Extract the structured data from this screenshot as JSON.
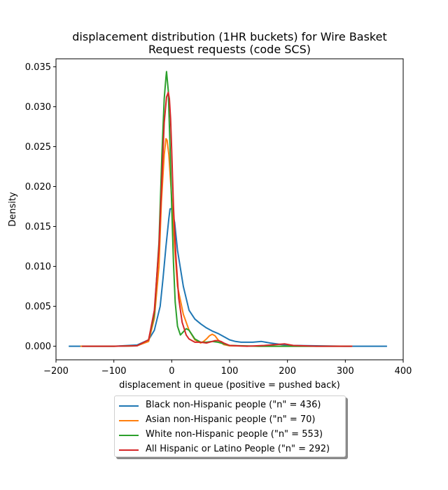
{
  "chart_data": {
    "type": "line",
    "title_line1": "displacement distribution (1HR buckets) for Wire Basket",
    "title_line2": "Request requests (code SCS)",
    "xlabel": "displacement in queue (positive = pushed back)",
    "ylabel": "Density",
    "xlim": [
      -200,
      400
    ],
    "ylim": [
      -0.0017,
      0.036
    ],
    "xticks": [
      -200,
      -100,
      0,
      100,
      200,
      300,
      400
    ],
    "yticks": [
      0.0,
      0.005,
      0.01,
      0.015,
      0.02,
      0.025,
      0.03,
      0.035
    ],
    "xtick_labels": [
      "−200",
      "−100",
      "0",
      "100",
      "200",
      "300",
      "400"
    ],
    "ytick_labels": [
      "0.000",
      "0.005",
      "0.010",
      "0.015",
      "0.020",
      "0.025",
      "0.030",
      "0.035"
    ],
    "legend_position": "bottom-center",
    "series": [
      {
        "name": "Black non-Hispanic people (\"n\" = 436)",
        "color": "#1f77b4",
        "x": [
          -178,
          -100,
          -60,
          -40,
          -30,
          -20,
          -15,
          -10,
          -5,
          -3,
          0,
          5,
          10,
          20,
          30,
          40,
          50,
          60,
          70,
          80,
          90,
          100,
          110,
          120,
          130,
          140,
          155,
          170,
          190,
          210,
          250,
          300,
          372
        ],
        "y": [
          0.0,
          0.0,
          0.00015,
          0.0008,
          0.002,
          0.005,
          0.0085,
          0.0125,
          0.016,
          0.0172,
          0.0172,
          0.0155,
          0.012,
          0.0075,
          0.0045,
          0.0034,
          0.0028,
          0.0023,
          0.0019,
          0.0016,
          0.0012,
          0.0008,
          0.0006,
          0.0005,
          0.0005,
          0.0005,
          0.0006,
          0.0004,
          0.0002,
          0.0001,
          5e-05,
          0.0,
          0.0
        ]
      },
      {
        "name": "Asian non-Hispanic people (\"n\" = 70)",
        "color": "#ff7f0e",
        "x": [
          -158,
          -100,
          -60,
          -40,
          -30,
          -22,
          -18,
          -13,
          -10,
          -8,
          -5,
          0,
          5,
          10,
          20,
          30,
          40,
          50,
          55,
          60,
          65,
          70,
          75,
          80,
          90,
          100,
          150,
          200,
          250,
          312
        ],
        "y": [
          0.0,
          0.0,
          5e-05,
          0.0006,
          0.0035,
          0.01,
          0.018,
          0.024,
          0.026,
          0.0258,
          0.024,
          0.0185,
          0.0125,
          0.0075,
          0.004,
          0.002,
          0.0008,
          0.0004,
          0.0006,
          0.0009,
          0.0013,
          0.0015,
          0.0013,
          0.0008,
          0.0002,
          5e-05,
          0.0,
          0.0,
          0.0,
          0.0
        ]
      },
      {
        "name": "White non-Hispanic people (\"n\" = 553)",
        "color": "#2ca02c",
        "x": [
          -155,
          -100,
          -60,
          -40,
          -30,
          -22,
          -17,
          -13,
          -10,
          -9,
          -6,
          -3,
          0,
          3,
          6,
          10,
          15,
          20,
          25,
          30,
          40,
          50,
          60,
          70,
          80,
          90,
          100,
          150,
          200,
          250,
          310
        ],
        "y": [
          0.0,
          0.0,
          5e-05,
          0.0008,
          0.004,
          0.013,
          0.024,
          0.031,
          0.0337,
          0.0344,
          0.032,
          0.025,
          0.0175,
          0.0105,
          0.0055,
          0.0025,
          0.0014,
          0.0018,
          0.0022,
          0.002,
          0.0009,
          0.0005,
          0.0005,
          0.0006,
          0.0005,
          0.0003,
          0.0001,
          0.0,
          0.0,
          0.0,
          0.0
        ]
      },
      {
        "name": "All Hispanic or Latino People (\"n\" = 292)",
        "color": "#d62728",
        "x": [
          -155,
          -100,
          -60,
          -40,
          -30,
          -22,
          -17,
          -13,
          -9,
          -6,
          -4,
          -2,
          0,
          3,
          7,
          12,
          18,
          25,
          30,
          40,
          50,
          60,
          70,
          75,
          80,
          85,
          90,
          100,
          130,
          160,
          180,
          195,
          210,
          250,
          312
        ],
        "y": [
          0.0,
          0.0,
          5e-05,
          0.0008,
          0.0045,
          0.0125,
          0.021,
          0.028,
          0.0312,
          0.0318,
          0.031,
          0.0285,
          0.0245,
          0.0175,
          0.0115,
          0.006,
          0.003,
          0.0014,
          0.0009,
          0.0005,
          0.0005,
          0.0004,
          0.0006,
          0.0007,
          0.0007,
          0.0006,
          0.0004,
          0.0001,
          0.0,
          0.0001,
          0.0002,
          0.0003,
          0.0001,
          0.0,
          0.0
        ]
      }
    ]
  }
}
